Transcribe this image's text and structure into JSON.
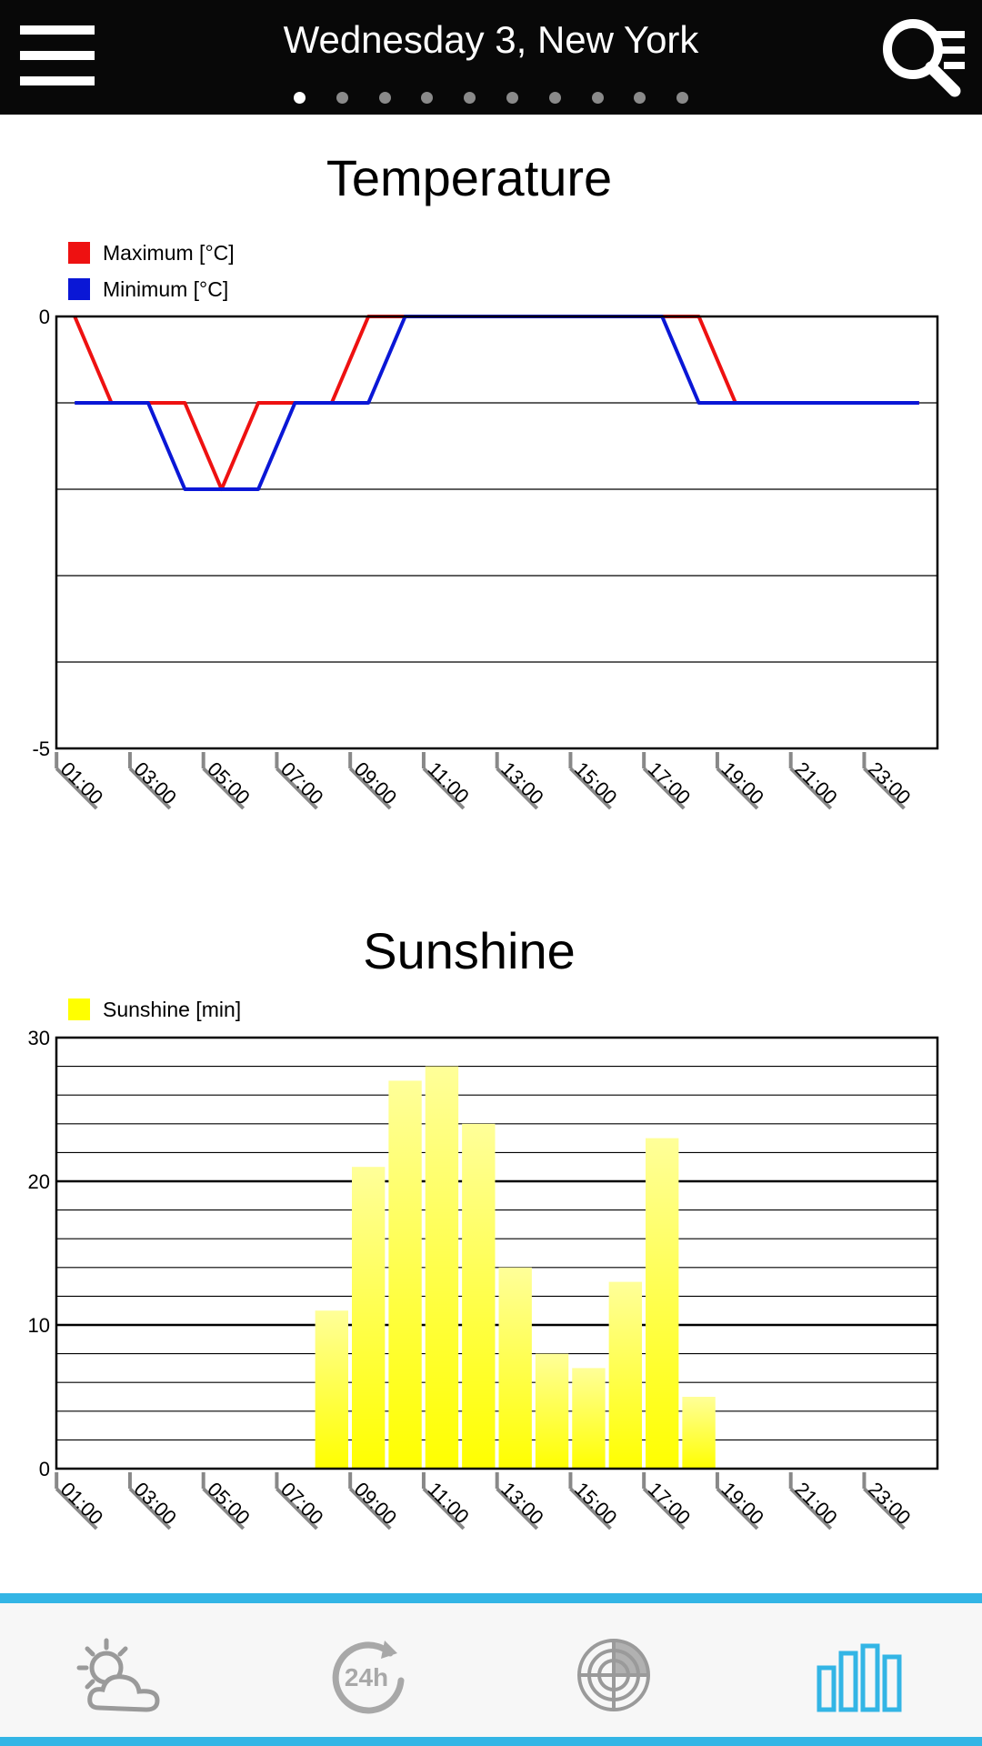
{
  "header": {
    "title": "Wednesday 3, New York",
    "page_count": 10,
    "active_page": 1,
    "menu_icon": "hamburger-menu-icon",
    "search_icon": "search-list-icon"
  },
  "bottom_nav": {
    "items": [
      {
        "icon": "partly-cloudy-icon",
        "active": false
      },
      {
        "icon": "24h-forecast-icon",
        "active": false
      },
      {
        "icon": "radar-icon",
        "active": false
      },
      {
        "icon": "bar-chart-icon",
        "active": true
      }
    ],
    "accent_color": "#33b5e5",
    "inactive_color": "#9a9a9a"
  },
  "chart_data": [
    {
      "type": "line",
      "title": "Temperature",
      "x": [
        "01:00",
        "02:00",
        "03:00",
        "04:00",
        "05:00",
        "06:00",
        "07:00",
        "08:00",
        "09:00",
        "10:00",
        "11:00",
        "12:00",
        "13:00",
        "14:00",
        "15:00",
        "16:00",
        "17:00",
        "18:00",
        "19:00",
        "20:00",
        "21:00",
        "22:00",
        "23:00",
        "24:00"
      ],
      "tick_labels": [
        "01:00",
        "03:00",
        "05:00",
        "07:00",
        "09:00",
        "11:00",
        "13:00",
        "15:00",
        "17:00",
        "19:00",
        "21:00",
        "23:00"
      ],
      "series": [
        {
          "name": "Maximum [°C]",
          "color": "#ee1111",
          "values": [
            0,
            -1,
            -1,
            -1,
            -2,
            -1,
            -1,
            -1,
            0,
            0,
            0,
            0,
            0,
            0,
            0,
            0,
            0,
            0,
            -1,
            -1,
            -1,
            -1,
            -1,
            -1
          ]
        },
        {
          "name": "Minimum [°C]",
          "color": "#0a17d6",
          "values": [
            -1,
            -1,
            -1,
            -2,
            -2,
            -2,
            -1,
            -1,
            -1,
            0,
            0,
            0,
            0,
            0,
            0,
            0,
            0,
            -1,
            -1,
            -1,
            -1,
            -1,
            -1,
            -1
          ]
        }
      ],
      "ylim": [
        -5,
        0
      ],
      "y_tick_labels": [
        "0",
        "-5"
      ],
      "grid": true,
      "legend": "top-left"
    },
    {
      "type": "bar",
      "title": "Sunshine",
      "x": [
        "01:00",
        "02:00",
        "03:00",
        "04:00",
        "05:00",
        "06:00",
        "07:00",
        "08:00",
        "09:00",
        "10:00",
        "11:00",
        "12:00",
        "13:00",
        "14:00",
        "15:00",
        "16:00",
        "17:00",
        "18:00",
        "19:00",
        "20:00",
        "21:00",
        "22:00",
        "23:00",
        "24:00"
      ],
      "tick_labels": [
        "01:00",
        "03:00",
        "05:00",
        "07:00",
        "09:00",
        "11:00",
        "13:00",
        "15:00",
        "17:00",
        "19:00",
        "21:00",
        "23:00"
      ],
      "series": [
        {
          "name": "Sunshine [min]",
          "color": "#ffff00",
          "values": [
            0,
            0,
            0,
            0,
            0,
            0,
            0,
            11,
            21,
            27,
            28,
            24,
            14,
            8,
            7,
            13,
            23,
            5,
            0,
            0,
            0,
            0,
            0,
            0
          ]
        }
      ],
      "ylim": [
        0,
        30
      ],
      "y_tick_labels": [
        "0",
        "10",
        "20",
        "30"
      ],
      "grid": true,
      "legend": "top-left"
    }
  ]
}
